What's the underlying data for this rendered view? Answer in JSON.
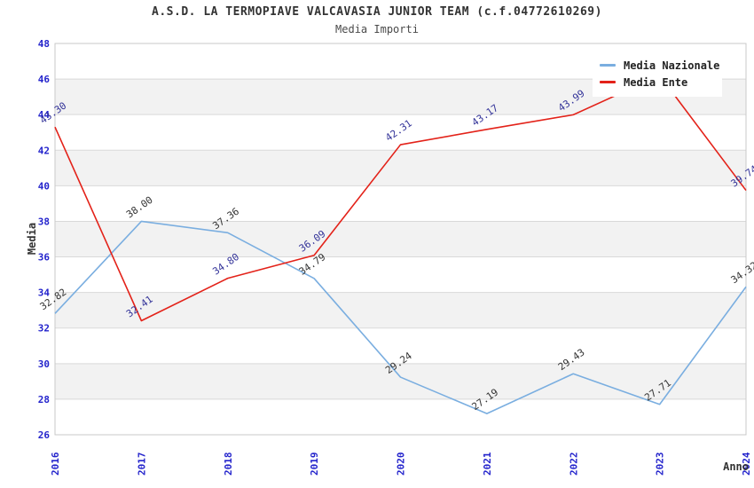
{
  "title": "A.S.D. LA TERMOPIAVE VALCAVASIA JUNIOR TEAM (c.f.04772610269)",
  "subtitle": "Media Importi",
  "axes": {
    "y_label": "Media",
    "x_label": "Anno",
    "y_ticks": [
      26,
      28,
      30,
      32,
      34,
      36,
      38,
      40,
      42,
      44,
      46,
      48
    ],
    "x_ticks": [
      "2016",
      "2017",
      "2018",
      "2019",
      "2020",
      "2021",
      "2022",
      "2023",
      "2024"
    ]
  },
  "legend": [
    {
      "label": "Media Nazionale",
      "color": "#7aaee0"
    },
    {
      "label": "Media Ente",
      "color": "#e32219"
    }
  ],
  "colors": {
    "tick_text": "#2424cc",
    "band_fill": "#f2f2f2",
    "gridline": "#d9d9d9",
    "plot_border": "#c9c9c9",
    "title_text": "#333333"
  },
  "chart_data": {
    "type": "line",
    "title": "A.S.D. LA TERMOPIAVE VALCAVASIA JUNIOR TEAM (c.f.04772610269)",
    "subtitle": "Media Importi",
    "xlabel": "Anno",
    "ylabel": "Media",
    "ylim": [
      26,
      48
    ],
    "y_tick_step": 2,
    "grid": "horizontal",
    "band_rows": [
      [
        28,
        30
      ],
      [
        32,
        34
      ],
      [
        36,
        38
      ],
      [
        40,
        42
      ],
      [
        44,
        46
      ]
    ],
    "legend_position": "top-right",
    "categories": [
      "2016",
      "2017",
      "2018",
      "2019",
      "2020",
      "2021",
      "2022",
      "2023",
      "2024"
    ],
    "series": [
      {
        "name": "Media Nazionale",
        "color": "#7aaee0",
        "label_color": "#333333",
        "values": [
          32.82,
          38.0,
          37.36,
          34.79,
          29.24,
          27.19,
          29.43,
          27.71,
          34.32
        ],
        "point_labels": [
          "32.82",
          "38.00",
          "37.36",
          "34.79",
          "29.24",
          "27.19",
          "29.43",
          "27.71",
          "34.32"
        ]
      },
      {
        "name": "Media Ente",
        "color": "#e32219",
        "label_color": "#333399",
        "values": [
          43.3,
          32.41,
          34.8,
          36.09,
          42.31,
          43.17,
          43.99,
          46.2,
          39.74
        ],
        "point_labels": [
          "43.30",
          "32.41",
          "34.80",
          "36.09",
          "42.31",
          "43.17",
          "43.99",
          null,
          "39.74"
        ],
        "hidden_label_note": "2023 label hidden behind legend box; value estimated from line"
      }
    ]
  }
}
